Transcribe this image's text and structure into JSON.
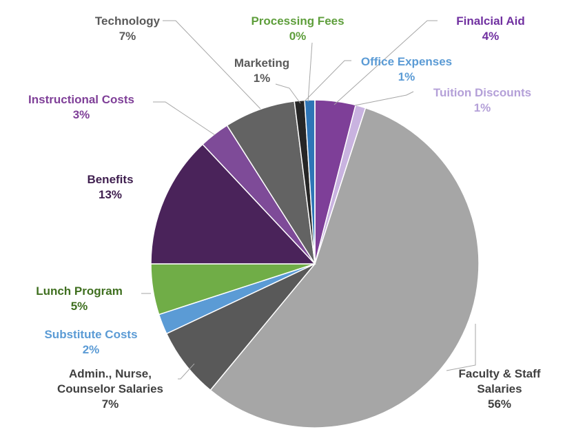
{
  "chart_data": {
    "type": "pie",
    "categories": [
      "Finalcial Aid",
      "Tuition Discounts",
      "Faculty & Staff Salaries",
      "Admin., Nurse, Counselor Salaries",
      "Substitute Costs",
      "Lunch Program",
      "Benefits",
      "Instructional Costs",
      "Technology",
      "Marketing",
      "Office Expenses",
      "Processing Fees"
    ],
    "values": [
      4,
      1,
      56,
      7,
      2,
      5,
      13,
      3,
      7,
      1,
      1,
      0
    ],
    "value_labels": [
      "4%",
      "1%",
      "56%",
      "7%",
      "2%",
      "5%",
      "13%",
      "3%",
      "7%",
      "1%",
      "1%",
      "0%"
    ],
    "colors": [
      "#7e3f98",
      "#c9b3e0",
      "#a6a6a6",
      "#595959",
      "#5b9bd5",
      "#70ad47",
      "#4a235a",
      "#7e4b98",
      "#636363",
      "#262626",
      "#2e75b6",
      "#548235"
    ]
  }
}
